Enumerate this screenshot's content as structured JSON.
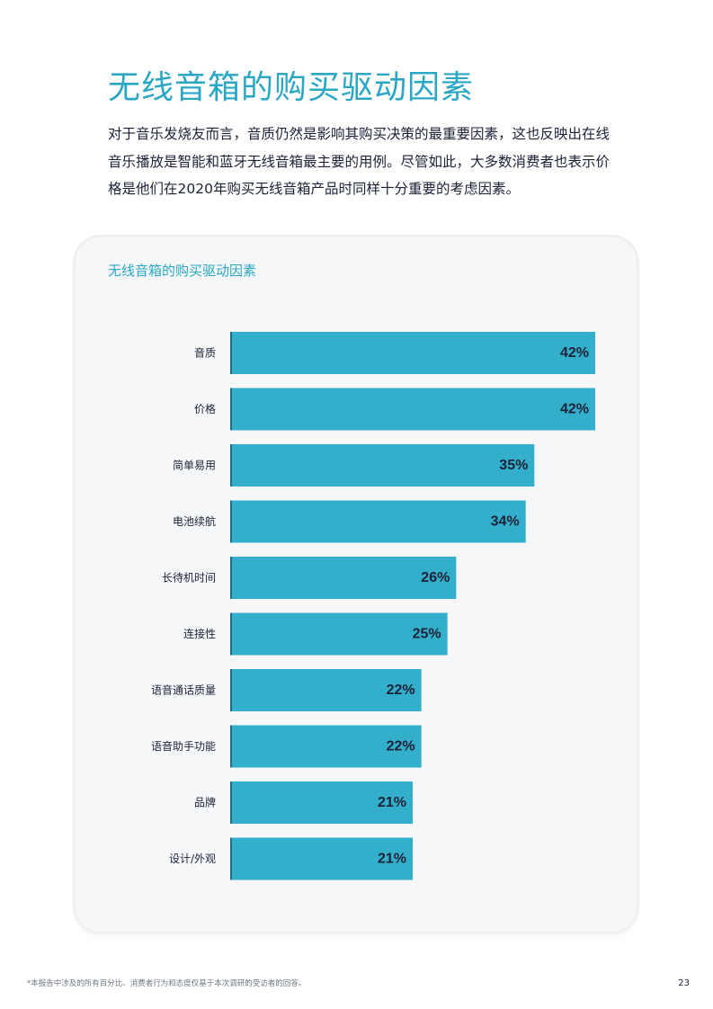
{
  "page": {
    "title": "无线音箱的购买驱动因素",
    "intro": "对于音乐发烧友而言，音质仍然是影响其购买决策的最重要因素，这也反映出在线音乐播放是智能和蓝牙无线音箱最主要的用例。尽管如此，大多数消费者也表示价格是他们在2020年购买无线音箱产品时同样十分重要的考虑因素。",
    "footnote": "*本报告中涉及的所有百分比、消费者行为和态度仅基于本次调研的受访者的回答。",
    "page_number": "23"
  },
  "chart_data": {
    "type": "bar",
    "orientation": "horizontal",
    "title": "无线音箱的购买驱动因素",
    "categories": [
      "音质",
      "价格",
      "简单易用",
      "电池续航",
      "长待机时间",
      "连接性",
      "语音通话质量",
      "语音助手功能",
      "品牌",
      "设计/外观"
    ],
    "values": [
      42,
      42,
      35,
      34,
      26,
      25,
      22,
      22,
      21,
      21
    ],
    "value_labels": [
      "42%",
      "42%",
      "35%",
      "34%",
      "26%",
      "25%",
      "22%",
      "22%",
      "21%",
      "21%"
    ],
    "xlim": [
      0,
      42
    ],
    "grid": false,
    "legend": "none",
    "colors": {
      "bar": "#33aecb",
      "bar_edge": "#1f6f86",
      "label": "#1c2236",
      "value_label": "#1c2236"
    }
  }
}
